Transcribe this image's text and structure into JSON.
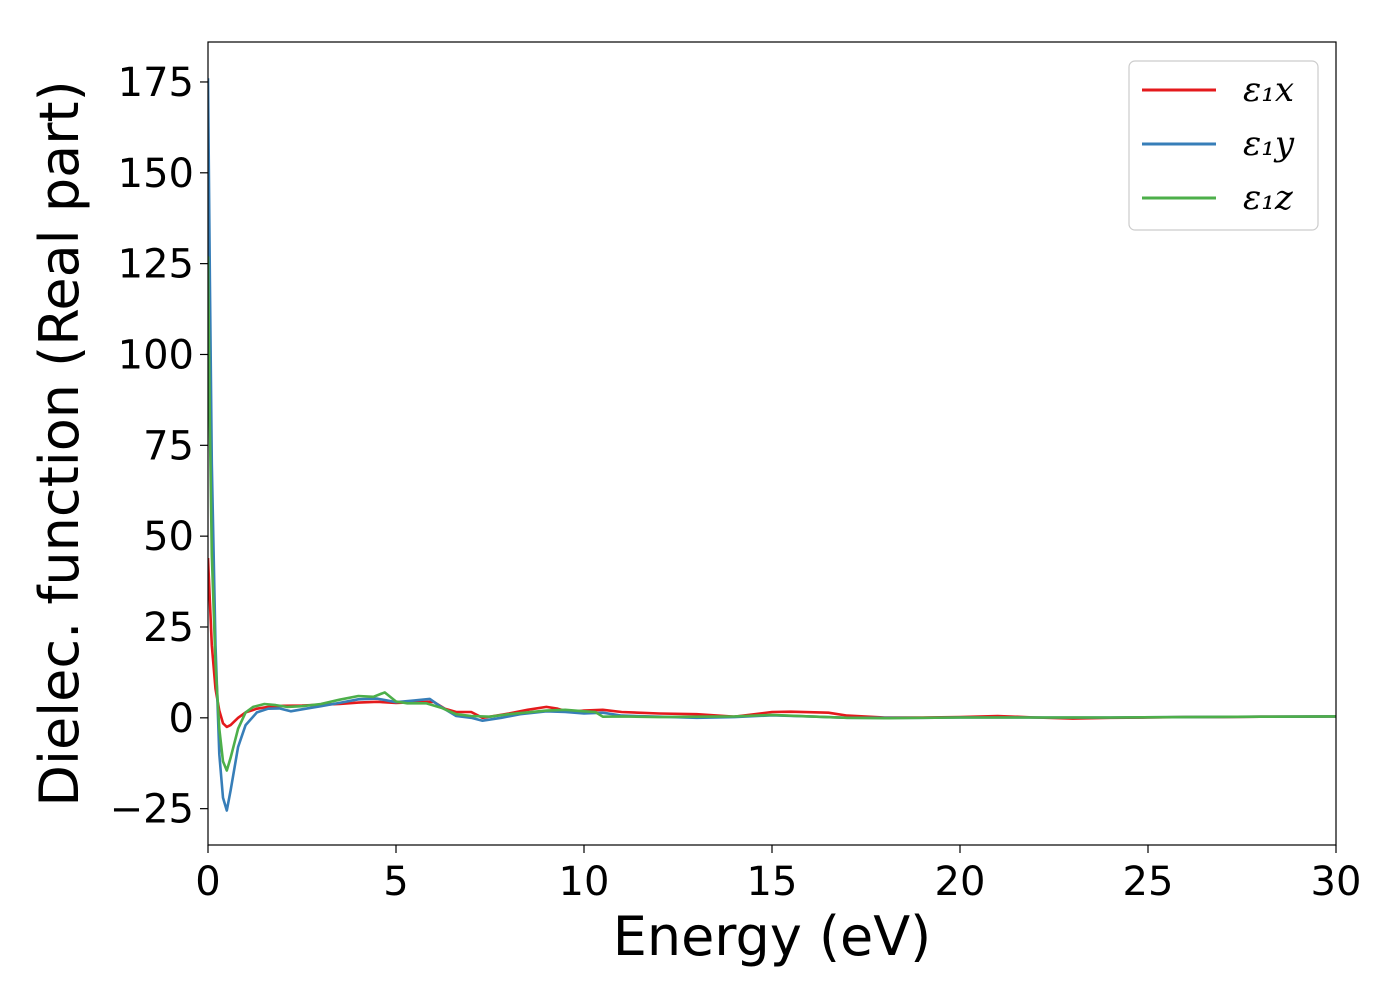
{
  "chart_data": {
    "type": "line",
    "xlabel": "Energy (eV)",
    "ylabel": "Dielec. function (Real part)",
    "xlim": [
      0,
      30
    ],
    "ylim": [
      -35,
      186
    ],
    "xticks": [
      0,
      5,
      10,
      15,
      20,
      25,
      30
    ],
    "yticks": [
      -25,
      0,
      25,
      50,
      75,
      100,
      125,
      150,
      175
    ],
    "xtick_labels": [
      "0",
      "5",
      "10",
      "15",
      "20",
      "25",
      "30"
    ],
    "ytick_labels": [
      "−25",
      "0",
      "25",
      "50",
      "75",
      "100",
      "125",
      "150",
      "175"
    ],
    "grid": false,
    "legend_position": "top-right",
    "series": [
      {
        "name": "ε₁x",
        "color": "#e41a1c",
        "x": [
          0,
          0.1,
          0.2,
          0.3,
          0.4,
          0.5,
          0.6,
          0.8,
          1.0,
          1.3,
          1.6,
          2.0,
          2.5,
          3.0,
          3.5,
          4.0,
          4.5,
          5.0,
          5.5,
          6.0,
          6.3,
          6.6,
          7.0,
          7.3,
          7.6,
          8.0,
          8.5,
          9.0,
          9.3,
          9.6,
          10.0,
          10.5,
          11.0,
          12.0,
          13.0,
          14.0,
          15.0,
          15.5,
          16.5,
          17.0,
          18.0,
          19.0,
          20.0,
          21.0,
          22.0,
          23.0,
          24.0,
          25.0,
          26.0,
          27.0,
          28.0,
          29.0,
          30.0
        ],
        "values": [
          44,
          20,
          8,
          2,
          -1.5,
          -2.5,
          -2,
          0,
          1.5,
          2.5,
          3,
          3.3,
          3.4,
          3.6,
          3.8,
          4.2,
          4.4,
          4.1,
          4.3,
          4.4,
          2.5,
          1.6,
          1.6,
          0,
          0.5,
          1.2,
          2.2,
          3,
          2.5,
          1.6,
          2,
          2.2,
          1.6,
          1.2,
          1,
          0.3,
          1.6,
          1.7,
          1.4,
          0.6,
          0.1,
          0.1,
          0.2,
          0.5,
          0.1,
          -0.2,
          0,
          0.1,
          0.2,
          0.2,
          0.3,
          0.3,
          0.4
        ]
      },
      {
        "name": "ε₁y",
        "color": "#377eb8",
        "x": [
          0,
          0.05,
          0.1,
          0.2,
          0.3,
          0.4,
          0.5,
          0.6,
          0.8,
          1.0,
          1.3,
          1.6,
          1.9,
          2.2,
          2.6,
          3.0,
          3.5,
          4.0,
          4.5,
          5.0,
          5.5,
          5.9,
          6.2,
          6.6,
          7.0,
          7.3,
          7.8,
          8.3,
          9.0,
          9.5,
          10.0,
          10.5,
          11.0,
          12.0,
          13.0,
          14.0,
          15.0,
          16.0,
          17.0,
          18.0,
          19.0,
          20.0,
          22.0,
          24.0,
          26.0,
          28.0,
          30.0
        ],
        "values": [
          176,
          120,
          70,
          20,
          -10,
          -22,
          -25.5,
          -20,
          -8,
          -2,
          1.5,
          2.5,
          2.6,
          1.8,
          2.5,
          3.2,
          4.1,
          5.1,
          5.3,
          4.3,
          4.8,
          5.2,
          3,
          0.5,
          0,
          -0.8,
          0,
          1,
          1.8,
          1.6,
          1.2,
          1.4,
          0.6,
          0.3,
          0,
          0.2,
          0.7,
          0.4,
          0,
          0,
          0,
          0.1,
          0.1,
          0.1,
          0.2,
          0.3,
          0.4
        ]
      },
      {
        "name": "ε₁z",
        "color": "#4daf4a",
        "x": [
          0,
          0.05,
          0.1,
          0.2,
          0.3,
          0.4,
          0.5,
          0.6,
          0.8,
          1.0,
          1.2,
          1.5,
          1.8,
          2.1,
          2.5,
          3.0,
          3.5,
          4.0,
          4.4,
          4.7,
          5.0,
          5.3,
          5.8,
          6.2,
          6.6,
          7.0,
          7.5,
          8.0,
          9.0,
          9.5,
          10.0,
          10.3,
          10.5,
          11.0,
          12.0,
          13.0,
          14.0,
          15.0,
          16.0,
          17.0,
          18.0,
          19.0,
          20.0,
          22.0,
          24.0,
          26.0,
          28.0,
          30.0
        ],
        "values": [
          127,
          80,
          45,
          15,
          -3,
          -12,
          -14.5,
          -11,
          -3,
          1.5,
          3,
          3.8,
          3.5,
          3,
          3.2,
          3.8,
          5,
          6,
          5.8,
          7,
          4.5,
          4,
          4,
          2.8,
          1,
          0.5,
          0.3,
          1,
          2,
          2.2,
          1.8,
          1.6,
          0.3,
          0.4,
          0.2,
          0.3,
          0.4,
          0.8,
          0.4,
          0,
          -0.1,
          0,
          0.1,
          0.1,
          0.1,
          0.2,
          0.3,
          0.4
        ]
      }
    ]
  }
}
